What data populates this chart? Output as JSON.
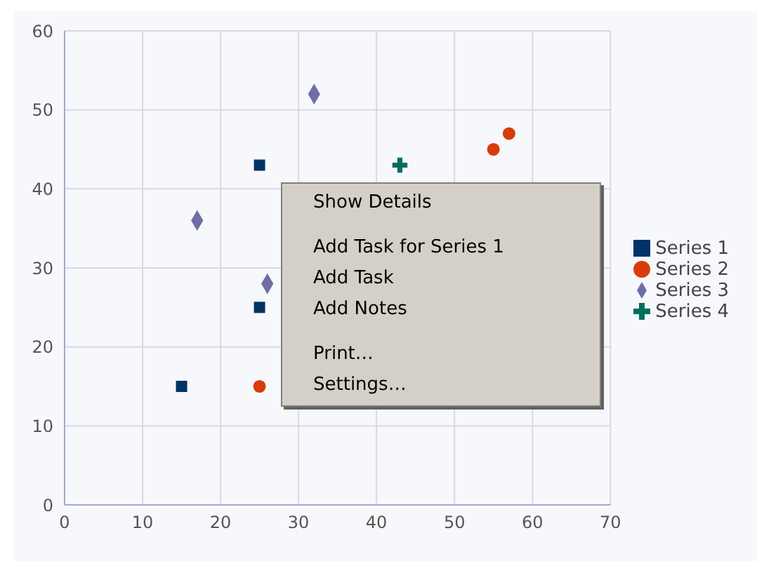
{
  "chart_data": {
    "type": "scatter",
    "xlim": [
      0,
      70
    ],
    "xticks": [
      0,
      10,
      20,
      30,
      40,
      50,
      60,
      70
    ],
    "ylim": [
      0,
      60
    ],
    "yticks": [
      0,
      10,
      20,
      30,
      40,
      50,
      60
    ],
    "grid": true,
    "legend": "right",
    "series": [
      {
        "name": "Series 1",
        "color": "#003366",
        "marker": "square",
        "x": [
          15,
          25,
          25
        ],
        "values": [
          15,
          25,
          43
        ]
      },
      {
        "name": "Series 2",
        "color": "#d83c0b",
        "marker": "circle",
        "x": [
          25,
          55,
          57
        ],
        "values": [
          15,
          45,
          47
        ]
      },
      {
        "name": "Series 3",
        "color": "#6e6ea6",
        "marker": "diamond",
        "x": [
          17,
          26,
          32
        ],
        "values": [
          36,
          28,
          52
        ]
      },
      {
        "name": "Series 4",
        "color": "#006e60",
        "marker": "cross",
        "x": [
          43
        ],
        "values": [
          43
        ]
      }
    ],
    "annotations": [
      "Show Details",
      "Add Task for Series 1",
      "Add Task",
      "Add Notes",
      "Print…",
      "Settings…"
    ]
  }
}
